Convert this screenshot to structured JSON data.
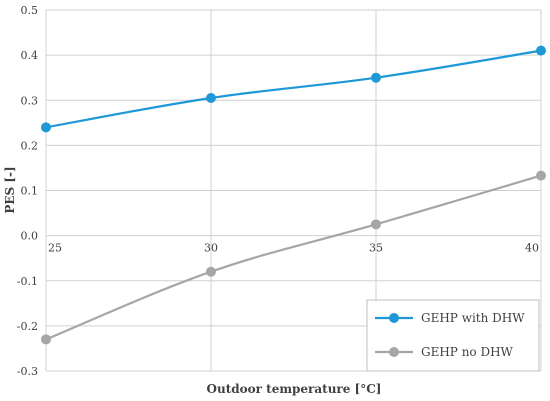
{
  "chart_data": {
    "type": "line",
    "xlabel": "Outdoor temperature [°C]",
    "ylabel": "PES [-]",
    "x": [
      25,
      30,
      35,
      40
    ],
    "x_tick_labels": [
      "25",
      "30",
      "35",
      "40"
    ],
    "ylim": [
      -0.3,
      0.5
    ],
    "y_ticks": [
      0.5,
      0.4,
      0.3,
      0.2,
      0.1,
      0.0,
      -0.1,
      -0.2,
      -0.3
    ],
    "y_tick_labels": [
      "0.5",
      "0.4",
      "0.3",
      "0.2",
      "0.1",
      "0.0",
      "-0.1",
      "-0.2",
      "-0.3"
    ],
    "grid": true,
    "legend_position": "bottom-right",
    "series": [
      {
        "name": "GEHP with DHW",
        "color": "#1f98d8",
        "values": [
          0.24,
          0.305,
          0.35,
          0.41
        ]
      },
      {
        "name": "GEHP no DHW",
        "color": "#a6a6a6",
        "values": [
          -0.23,
          -0.08,
          0.025,
          0.133
        ]
      }
    ]
  }
}
